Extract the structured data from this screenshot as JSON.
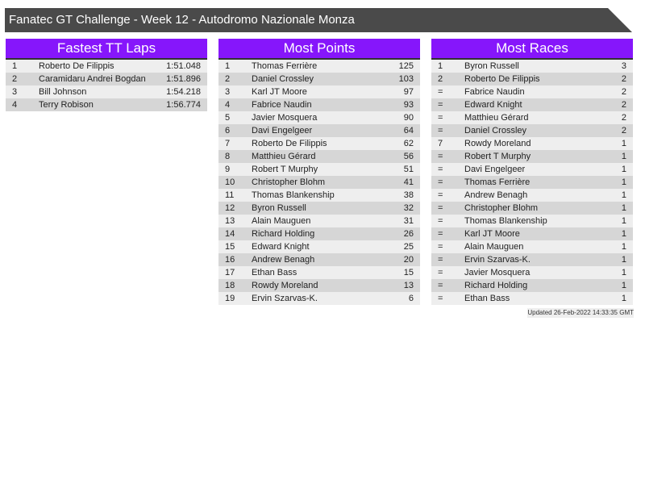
{
  "title": "Fanatec GT Challenge - Week 12 - Autodromo Nazionale Monza",
  "colors": {
    "title_bar": "#4a4a4a",
    "header": "#8616fb",
    "row_light": "#eeeeee",
    "row_dark": "#d6d6d6"
  },
  "panels": [
    {
      "title": "Fastest TT Laps",
      "rows": [
        [
          "1",
          "Roberto De Filippis",
          "1:51.048"
        ],
        [
          "2",
          "Caramidaru Andrei Bogdan",
          "1:51.896"
        ],
        [
          "3",
          "Bill Johnson",
          "1:54.218"
        ],
        [
          "4",
          "Terry Robison",
          "1:56.774"
        ]
      ]
    },
    {
      "title": "Most Points",
      "rows": [
        [
          "1",
          "Thomas Ferrière",
          "125"
        ],
        [
          "2",
          "Daniel Crossley",
          "103"
        ],
        [
          "3",
          "Karl JT Moore",
          "97"
        ],
        [
          "4",
          "Fabrice Naudin",
          "93"
        ],
        [
          "5",
          "Javier Mosquera",
          "90"
        ],
        [
          "6",
          "Davi Engelgeer",
          "64"
        ],
        [
          "7",
          "Roberto De Filippis",
          "62"
        ],
        [
          "8",
          "Matthieu Gérard",
          "56"
        ],
        [
          "9",
          "Robert T Murphy",
          "51"
        ],
        [
          "10",
          "Christopher Blohm",
          "41"
        ],
        [
          "11",
          "Thomas Blankenship",
          "38"
        ],
        [
          "12",
          "Byron Russell",
          "32"
        ],
        [
          "13",
          "Alain Mauguen",
          "31"
        ],
        [
          "14",
          "Richard Holding",
          "26"
        ],
        [
          "15",
          "Edward Knight",
          "25"
        ],
        [
          "16",
          "Andrew Benagh",
          "20"
        ],
        [
          "17",
          "Ethan Bass",
          "15"
        ],
        [
          "18",
          "Rowdy Moreland",
          "13"
        ],
        [
          "19",
          "Ervin Szarvas-K.",
          "6"
        ]
      ]
    },
    {
      "title": "Most Races",
      "rows": [
        [
          "1",
          "Byron Russell",
          "3"
        ],
        [
          "2",
          "Roberto De Filippis",
          "2"
        ],
        [
          "=",
          "Fabrice Naudin",
          "2"
        ],
        [
          "=",
          "Edward Knight",
          "2"
        ],
        [
          "=",
          "Matthieu Gérard",
          "2"
        ],
        [
          "=",
          "Daniel Crossley",
          "2"
        ],
        [
          "7",
          "Rowdy Moreland",
          "1"
        ],
        [
          "=",
          "Robert T Murphy",
          "1"
        ],
        [
          "=",
          "Davi Engelgeer",
          "1"
        ],
        [
          "=",
          "Thomas Ferrière",
          "1"
        ],
        [
          "=",
          "Andrew Benagh",
          "1"
        ],
        [
          "=",
          "Christopher Blohm",
          "1"
        ],
        [
          "=",
          "Thomas Blankenship",
          "1"
        ],
        [
          "=",
          "Karl JT Moore",
          "1"
        ],
        [
          "=",
          "Alain Mauguen",
          "1"
        ],
        [
          "=",
          "Ervin Szarvas-K.",
          "1"
        ],
        [
          "=",
          "Javier Mosquera",
          "1"
        ],
        [
          "=",
          "Richard Holding",
          "1"
        ],
        [
          "=",
          "Ethan Bass",
          "1"
        ]
      ]
    }
  ],
  "updated": "Updated 26-Feb-2022 14:33:35 GMT"
}
